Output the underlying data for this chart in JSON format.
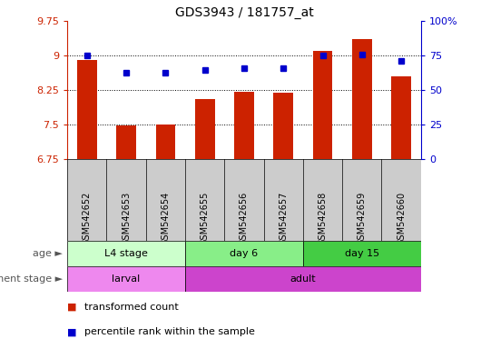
{
  "title": "GDS3943 / 181757_at",
  "samples": [
    "GSM542652",
    "GSM542653",
    "GSM542654",
    "GSM542655",
    "GSM542656",
    "GSM542657",
    "GSM542658",
    "GSM542659",
    "GSM542660"
  ],
  "bar_values": [
    8.9,
    7.48,
    7.5,
    8.05,
    8.22,
    8.19,
    9.1,
    9.35,
    8.55
  ],
  "dot_values": [
    9.0,
    8.62,
    8.63,
    8.68,
    8.73,
    8.72,
    9.0,
    9.02,
    8.88
  ],
  "ylim": [
    6.75,
    9.75
  ],
  "yticks": [
    6.75,
    7.5,
    8.25,
    9.0,
    9.75
  ],
  "ytick_labels": [
    "6.75",
    "7.5",
    "8.25",
    "9",
    "9.75"
  ],
  "right_yticks": [
    0,
    25,
    50,
    75,
    100
  ],
  "right_ytick_labels": [
    "0",
    "25",
    "50",
    "75",
    "100%"
  ],
  "bar_color": "#cc2200",
  "dot_color": "#0000cc",
  "age_groups": [
    {
      "label": "L4 stage",
      "start": 0,
      "end": 3,
      "color": "#ccffcc"
    },
    {
      "label": "day 6",
      "start": 3,
      "end": 6,
      "color": "#88ee88"
    },
    {
      "label": "day 15",
      "start": 6,
      "end": 9,
      "color": "#44cc44"
    }
  ],
  "dev_groups": [
    {
      "label": "larval",
      "start": 0,
      "end": 3,
      "color": "#ee88ee"
    },
    {
      "label": "adult",
      "start": 3,
      "end": 9,
      "color": "#cc44cc"
    }
  ],
  "sample_bg": "#cccccc",
  "legend_bar_label": "transformed count",
  "legend_dot_label": "percentile rank within the sample",
  "grid_lines": [
    9.0,
    8.25,
    7.5
  ],
  "bar_width": 0.5
}
